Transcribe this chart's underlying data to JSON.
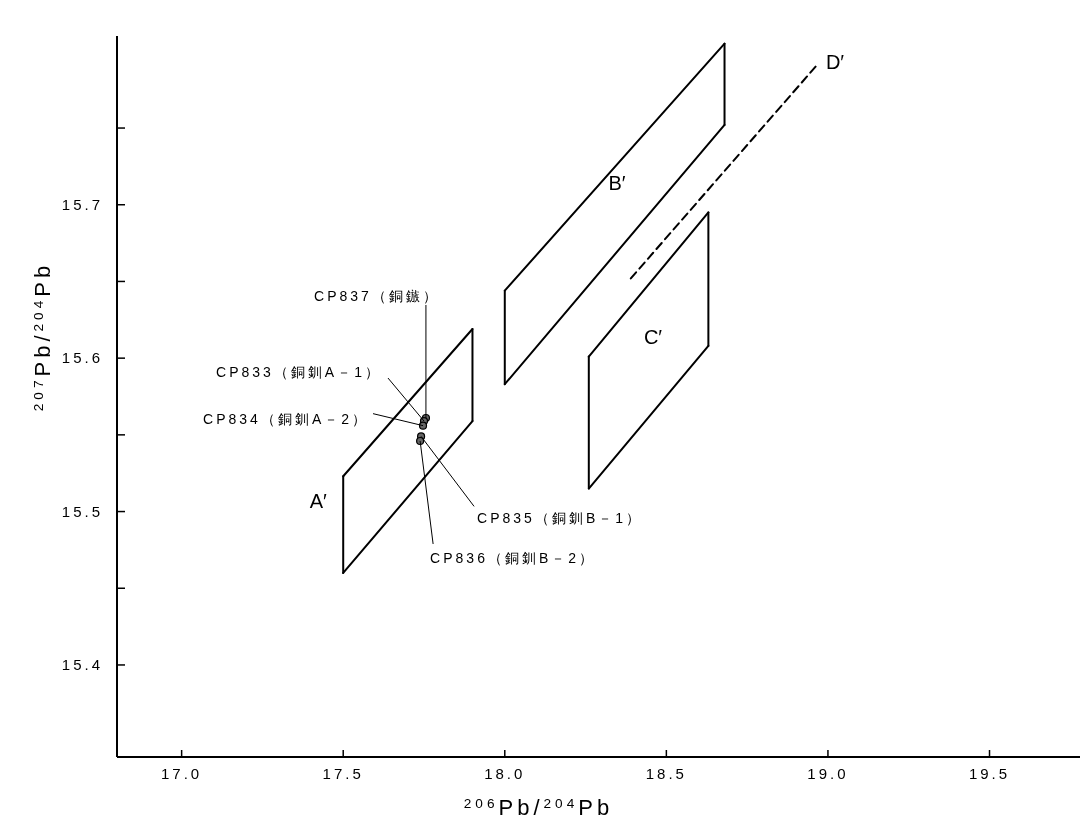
{
  "chart_data": {
    "type": "line",
    "xlabel": "$^{206}$Pb/$^{204}$Pb",
    "ylabel": "$^{207}$Pb/$^{204}$Pb",
    "xlim": [
      16.8,
      19.78
    ],
    "ylim": [
      15.34,
      15.81
    ],
    "xticks": [
      {
        "value": 17,
        "label": "17.0"
      },
      {
        "value": 17.5,
        "label": "17.5"
      },
      {
        "value": 18,
        "label": "18.0"
      },
      {
        "value": 18.5,
        "label": "18.5"
      },
      {
        "value": 19,
        "label": "19.0"
      },
      {
        "value": 19.5,
        "label": "19.5"
      }
    ],
    "yticks": [
      {
        "value": 15.4,
        "label": "15.4"
      },
      {
        "value": 15.45,
        "label": null
      },
      {
        "value": 15.5,
        "label": "15.5"
      },
      {
        "value": 15.55,
        "label": null
      },
      {
        "value": 15.6,
        "label": "15.6"
      },
      {
        "value": 15.65,
        "label": null
      },
      {
        "value": 15.7,
        "label": "15.7"
      },
      {
        "value": 15.75,
        "label": null
      }
    ],
    "series": [
      {
        "color": "#000000",
        "line_style": "solid",
        "x": [
          17.5,
          17.9
        ],
        "values": [
          15.523,
          15.619
        ]
      },
      {
        "color": "#000000",
        "line_style": "solid",
        "x": [
          17.5,
          17.9
        ],
        "values": [
          15.46,
          15.559
        ]
      },
      {
        "color": "#000000",
        "line_style": "solid",
        "x": [
          17.5,
          17.5
        ],
        "values": [
          15.46,
          15.523
        ]
      },
      {
        "color": "#000000",
        "line_style": "solid",
        "x": [
          17.9,
          17.9
        ],
        "values": [
          15.559,
          15.619
        ]
      },
      {
        "color": "#000000",
        "line_style": "solid",
        "x": [
          18.0,
          18.68
        ],
        "values": [
          15.644,
          15.805
        ]
      },
      {
        "color": "#000000",
        "line_style": "solid",
        "x": [
          18.0,
          18.68
        ],
        "values": [
          15.583,
          15.752
        ]
      },
      {
        "color": "#000000",
        "line_style": "solid",
        "x": [
          18.0,
          18.0
        ],
        "values": [
          15.583,
          15.644
        ]
      },
      {
        "color": "#000000",
        "line_style": "solid",
        "x": [
          18.68,
          18.68
        ],
        "values": [
          15.752,
          15.805
        ]
      },
      {
        "color": "#000000",
        "line_style": "solid",
        "x": [
          18.26,
          18.63
        ],
        "values": [
          15.601,
          15.695
        ]
      },
      {
        "color": "#000000",
        "line_style": "solid",
        "x": [
          18.26,
          18.63
        ],
        "values": [
          15.515,
          15.608
        ]
      },
      {
        "color": "#000000",
        "line_style": "solid",
        "x": [
          18.26,
          18.26
        ],
        "values": [
          15.515,
          15.601
        ]
      },
      {
        "color": "#000000",
        "line_style": "solid",
        "x": [
          18.63,
          18.63
        ],
        "values": [
          15.608,
          15.695
        ]
      },
      {
        "color": "#000000",
        "line_style": "dashed",
        "x": [
          18.39,
          18.97
        ],
        "values": [
          15.652,
          15.792
        ]
      },
      {
        "type": "scatter",
        "color": "#000000",
        "marker": "circle",
        "x": [
          17.756,
          17.75,
          17.747,
          17.741,
          17.738
        ],
        "values": [
          15.561,
          15.559,
          15.556,
          15.549,
          15.546
        ]
      }
    ],
    "annotations": [
      {
        "text": "CP837（銅鏃）",
        "x": 17.756,
        "y": 15.561
      },
      {
        "text": "CP833（銅釧A－1）",
        "x": 17.75,
        "y": 15.559
      },
      {
        "text": "CP834（銅釧A－2）",
        "x": 17.747,
        "y": 15.556
      },
      {
        "text": "CP835（銅釧B－1）",
        "x": 17.741,
        "y": 15.549
      },
      {
        "text": "CP836（銅釧B－2）",
        "x": 17.738,
        "y": 15.546
      },
      {
        "text": "A′",
        "x": 17.5,
        "y": 15.508
      },
      "B′",
      "C′",
      "D′"
    ]
  }
}
